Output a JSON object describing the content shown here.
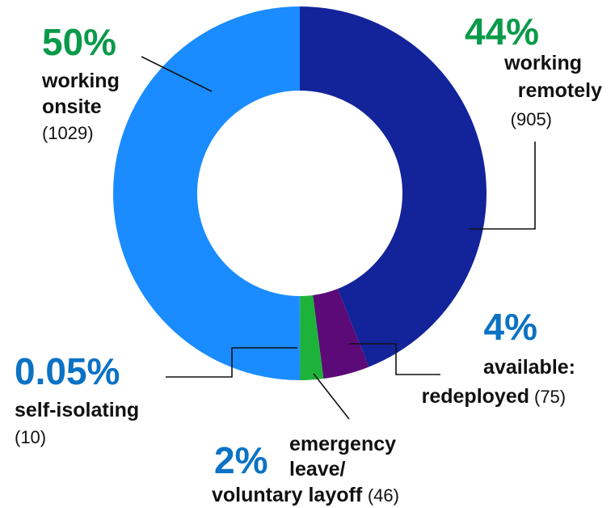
{
  "chart_data": {
    "type": "donut",
    "categories": [
      [
        "working",
        "remotely"
      ],
      [
        "available:",
        "redeployed"
      ],
      [
        "emergency",
        "leave/",
        "voluntary layoff"
      ],
      [
        "self-isolating"
      ],
      [
        "working",
        "onsite"
      ]
    ],
    "values": [
      44,
      4,
      2,
      0.05,
      50
    ],
    "value_labels": [
      "44%",
      "4%",
      "2%",
      "0.05%",
      "50%"
    ],
    "count_labels": [
      "(905)",
      "(75)",
      "(46)",
      "(10)",
      "(1029)"
    ],
    "colors": [
      "#13239a",
      "#5c0a78",
      "#1db33a",
      "#0d5bb5",
      "#1a8cff"
    ],
    "label_colors": [
      "#0a9a4a",
      "#0b72c4",
      "#0b72c4",
      "#0b72c4",
      "#0a9a4a"
    ]
  }
}
